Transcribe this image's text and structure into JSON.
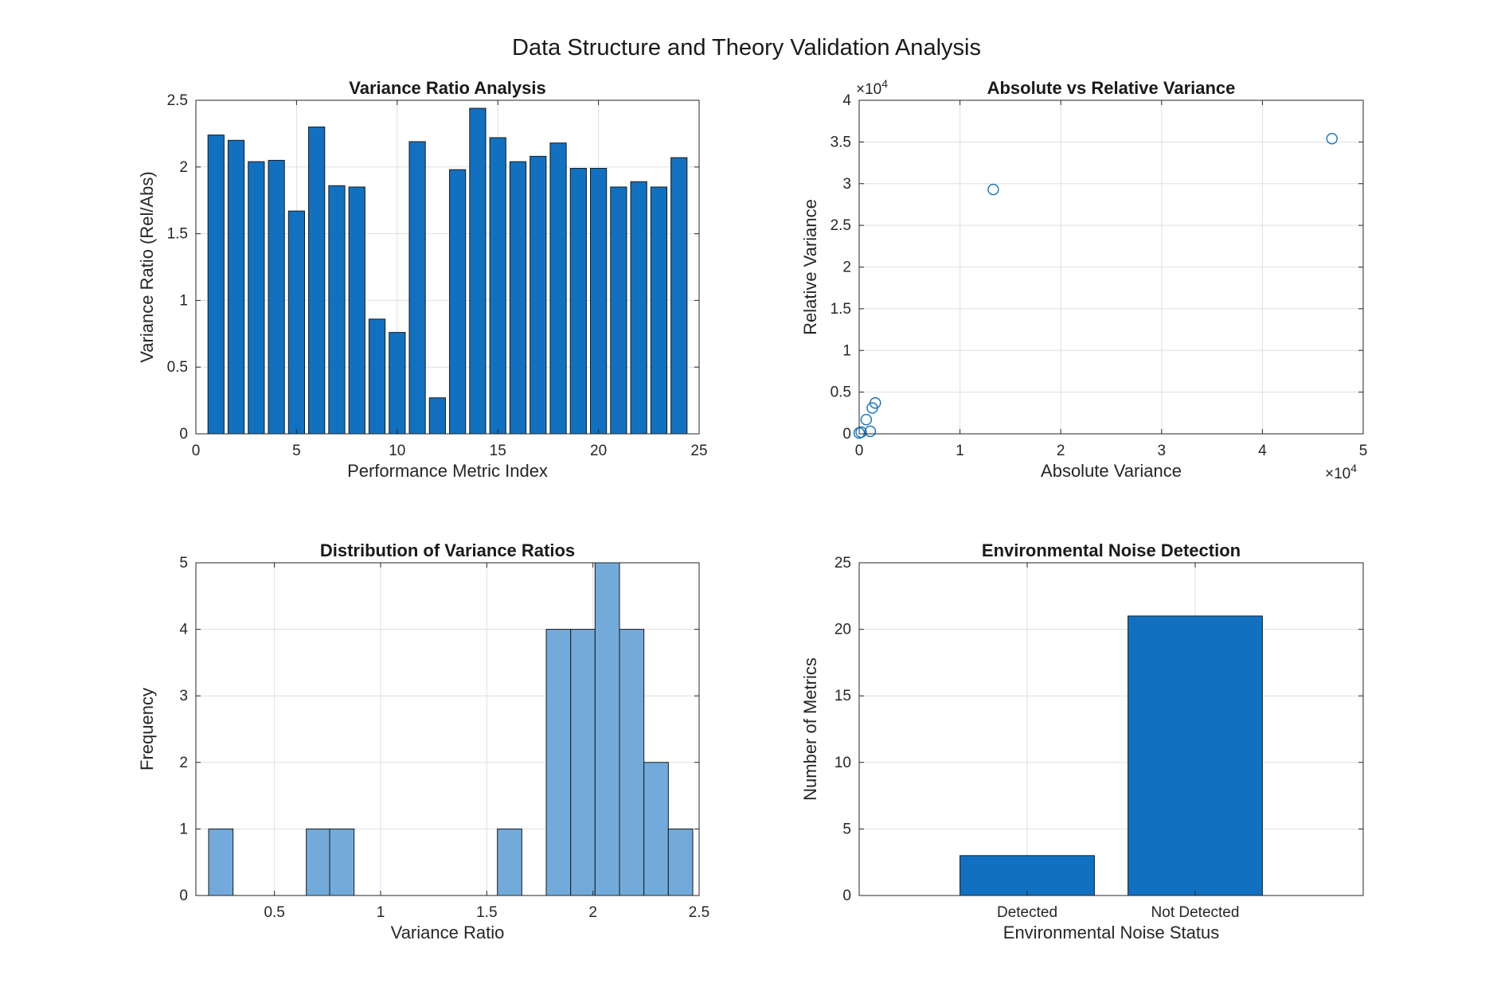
{
  "figure": {
    "title": "Data Structure and Theory Validation Analysis"
  },
  "colors": {
    "bar": "#1171c0",
    "hist": "#72aadb",
    "edge": "#1a1a1a",
    "marker": "#1171c0"
  },
  "chart_data": [
    {
      "type": "bar",
      "title": "Variance Ratio Analysis",
      "xlabel": "Performance Metric Index",
      "ylabel": "Variance Ratio (Rel/Abs)",
      "xlim": [
        0,
        25
      ],
      "ylim": [
        0,
        2.5
      ],
      "xticks": [
        0,
        5,
        10,
        15,
        20,
        25
      ],
      "yticks": [
        0,
        0.5,
        1,
        1.5,
        2,
        2.5
      ],
      "grid": true,
      "x": [
        1,
        2,
        3,
        4,
        5,
        6,
        7,
        8,
        9,
        10,
        11,
        12,
        13,
        14,
        15,
        16,
        17,
        18,
        19,
        20,
        21,
        22,
        23,
        24
      ],
      "values": [
        2.24,
        2.2,
        2.04,
        2.05,
        1.67,
        2.3,
        1.86,
        1.85,
        0.86,
        0.76,
        2.19,
        0.27,
        1.98,
        2.44,
        2.22,
        2.04,
        2.08,
        2.18,
        1.99,
        1.99,
        1.85,
        1.89,
        1.85,
        2.07
      ]
    },
    {
      "type": "scatter",
      "title": "Absolute vs Relative Variance",
      "xlabel": "Absolute Variance",
      "ylabel": "Relative Variance",
      "xlim": [
        0,
        5
      ],
      "ylim": [
        0,
        4
      ],
      "xticks": [
        0,
        1,
        2,
        3,
        4,
        5
      ],
      "yticks": [
        0,
        0.5,
        1,
        1.5,
        2,
        2.5,
        3,
        3.5,
        4
      ],
      "x_exponent": "×10",
      "x_exponent_power": "4",
      "y_exponent": "×10",
      "y_exponent_power": "4",
      "grid": true,
      "points": [
        {
          "x": 0.0,
          "y": 0.01
        },
        {
          "x": 0.02,
          "y": 0.02
        },
        {
          "x": 0.07,
          "y": 0.17
        },
        {
          "x": 0.11,
          "y": 0.03
        },
        {
          "x": 0.13,
          "y": 0.31
        },
        {
          "x": 0.16,
          "y": 0.37
        },
        {
          "x": 1.33,
          "y": 2.93
        },
        {
          "x": 4.69,
          "y": 3.54
        }
      ]
    },
    {
      "type": "bar",
      "title": "Distribution of Variance Ratios",
      "xlabel": "Variance Ratio",
      "ylabel": "Frequency",
      "xlim": [
        0.13,
        2.5
      ],
      "ylim": [
        0,
        5
      ],
      "xticks": [
        0.5,
        1,
        1.5,
        2,
        2.5
      ],
      "yticks": [
        0,
        1,
        2,
        3,
        4,
        5
      ],
      "grid": true,
      "bin_width": 0.115,
      "bins": [
        {
          "left": 0.19,
          "count": 1
        },
        {
          "left": 0.65,
          "count": 1
        },
        {
          "left": 0.76,
          "count": 1
        },
        {
          "left": 1.55,
          "count": 1
        },
        {
          "left": 1.78,
          "count": 4
        },
        {
          "left": 1.895,
          "count": 4
        },
        {
          "left": 2.01,
          "count": 5
        },
        {
          "left": 2.125,
          "count": 4
        },
        {
          "left": 2.24,
          "count": 2
        },
        {
          "left": 2.355,
          "count": 1
        }
      ]
    },
    {
      "type": "bar",
      "title": "Environmental Noise Detection",
      "xlabel": "Environmental Noise Status",
      "ylabel": "Number of Metrics",
      "ylim": [
        0,
        25
      ],
      "yticks": [
        0,
        5,
        10,
        15,
        20,
        25
      ],
      "grid": true,
      "categories": [
        "Detected",
        "Not Detected"
      ],
      "values": [
        3,
        21
      ]
    }
  ]
}
